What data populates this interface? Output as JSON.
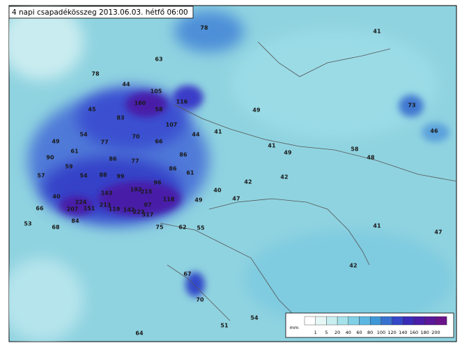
{
  "title": "4 napi csapadékösszeg 2013.06.03. hétfő 06:00",
  "map_labels": [
    78,
    41,
    63,
    78,
    44,
    105,
    160,
    58,
    116,
    45,
    83,
    49,
    73,
    107,
    54,
    70,
    44,
    41,
    46,
    49,
    77,
    66,
    41,
    49,
    58,
    48,
    61,
    90,
    86,
    77,
    86,
    59,
    86,
    61,
    57,
    54,
    88,
    99,
    96,
    42,
    42,
    192,
    215,
    40,
    40,
    143,
    224,
    118,
    47,
    49,
    66,
    207,
    151,
    213,
    119,
    97,
    142,
    223,
    317,
    53,
    84,
    68,
    75,
    62,
    55,
    41,
    47,
    42,
    67,
    70,
    54,
    51,
    64
  ],
  "legend": {
    "unit": "mm",
    "ticks": [
      1,
      5,
      20,
      40,
      60,
      80,
      100,
      120,
      140,
      160,
      180,
      200
    ]
  }
}
